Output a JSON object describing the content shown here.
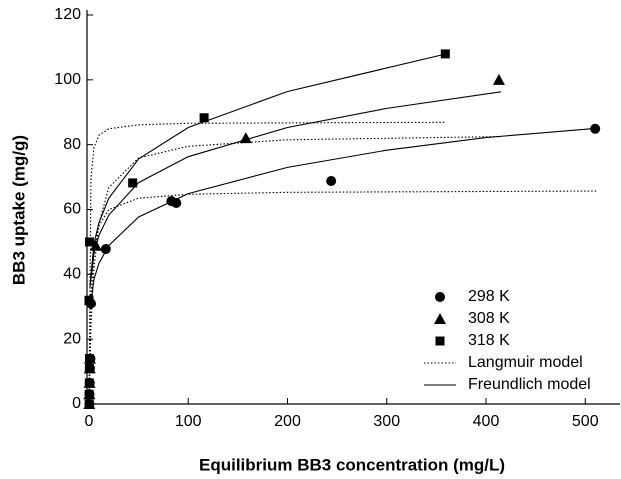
{
  "chart_data": {
    "type": "scatter",
    "xlabel": "Equilibrium BB3 concentration (mg/L)",
    "ylabel": "BB3 uptake (mg/g)",
    "xlim": [
      -2,
      535
    ],
    "ylim": [
      0,
      120
    ],
    "xticks": [
      0,
      100,
      200,
      300,
      400,
      500
    ],
    "yticks": [
      0,
      20,
      40,
      60,
      80,
      100,
      120
    ],
    "legend": "lower right",
    "series": [
      {
        "name": "298 K",
        "color": "#000000",
        "marker": "circle",
        "x": [
          0.5,
          0.5,
          0.8,
          1,
          1.5,
          2,
          17,
          83,
          88,
          244,
          510
        ],
        "values": [
          0,
          3,
          6.5,
          11,
          14,
          31,
          47.8,
          62.6,
          62,
          68.8,
          84.9
        ]
      },
      {
        "name": "308 K",
        "color": "#000000",
        "marker": "triangle",
        "x": [
          0.3,
          0.4,
          0.6,
          0.8,
          1,
          1.2,
          7,
          158,
          413
        ],
        "values": [
          0,
          3,
          6.5,
          11,
          14,
          32,
          48.8,
          82,
          100
        ]
      },
      {
        "name": "318 K",
        "color": "#000000",
        "marker": "square",
        "x": [
          0.2,
          0.2,
          0.3,
          0.4,
          0.5,
          0,
          0.5,
          44,
          116,
          359
        ],
        "values": [
          0,
          3,
          6.5,
          11,
          14,
          32,
          50,
          68.2,
          88.3,
          108
        ]
      }
    ],
    "models": [
      {
        "name": "Langmuir model",
        "dash": "dotted",
        "curves": [
          {
            "x": [
              0,
              2,
              5,
              10,
              20,
              50,
              100,
              200,
              512
            ],
            "values": [
              0,
              33,
              47.1,
              55,
              60,
              63.5,
              64.7,
              65.3,
              65.7
            ]
          },
          {
            "x": [
              0,
              2,
              5,
              10,
              20,
              50,
              100,
              200,
              415
            ],
            "values": [
              0,
              23.9,
              41.8,
              55.7,
              66.8,
              75.9,
              79.5,
              81.5,
              82.5
            ]
          },
          {
            "x": [
              0,
              2,
              5,
              10,
              20,
              50,
              100,
              360
            ],
            "values": [
              0,
              69.6,
              79.1,
              82.9,
              84.9,
              86.1,
              86.6,
              86.9
            ]
          }
        ]
      },
      {
        "name": "Freundlich model",
        "dash": "solid",
        "curves": [
          {
            "x": [
              1,
              5,
              10,
              20,
              50,
              100,
              200,
              300,
              400,
              510
            ],
            "values": [
              29.4,
              38.4,
              43.4,
              48.9,
              57.7,
              64.9,
              73,
              78.3,
              82.2,
              85
            ]
          },
          {
            "x": [
              1,
              5,
              10,
              20,
              50,
              100,
              200,
              300,
              415
            ],
            "values": [
              36,
              46.4,
              52,
              58.3,
              68.3,
              76.3,
              85.3,
              91.2,
              96.3
            ]
          },
          {
            "x": [
              1,
              5,
              10,
              20,
              50,
              100,
              200,
              360
            ],
            "values": [
              36.6,
              49.4,
              55.9,
              63.5,
              75.6,
              85.3,
              96.4,
              108
            ]
          }
        ]
      }
    ]
  }
}
